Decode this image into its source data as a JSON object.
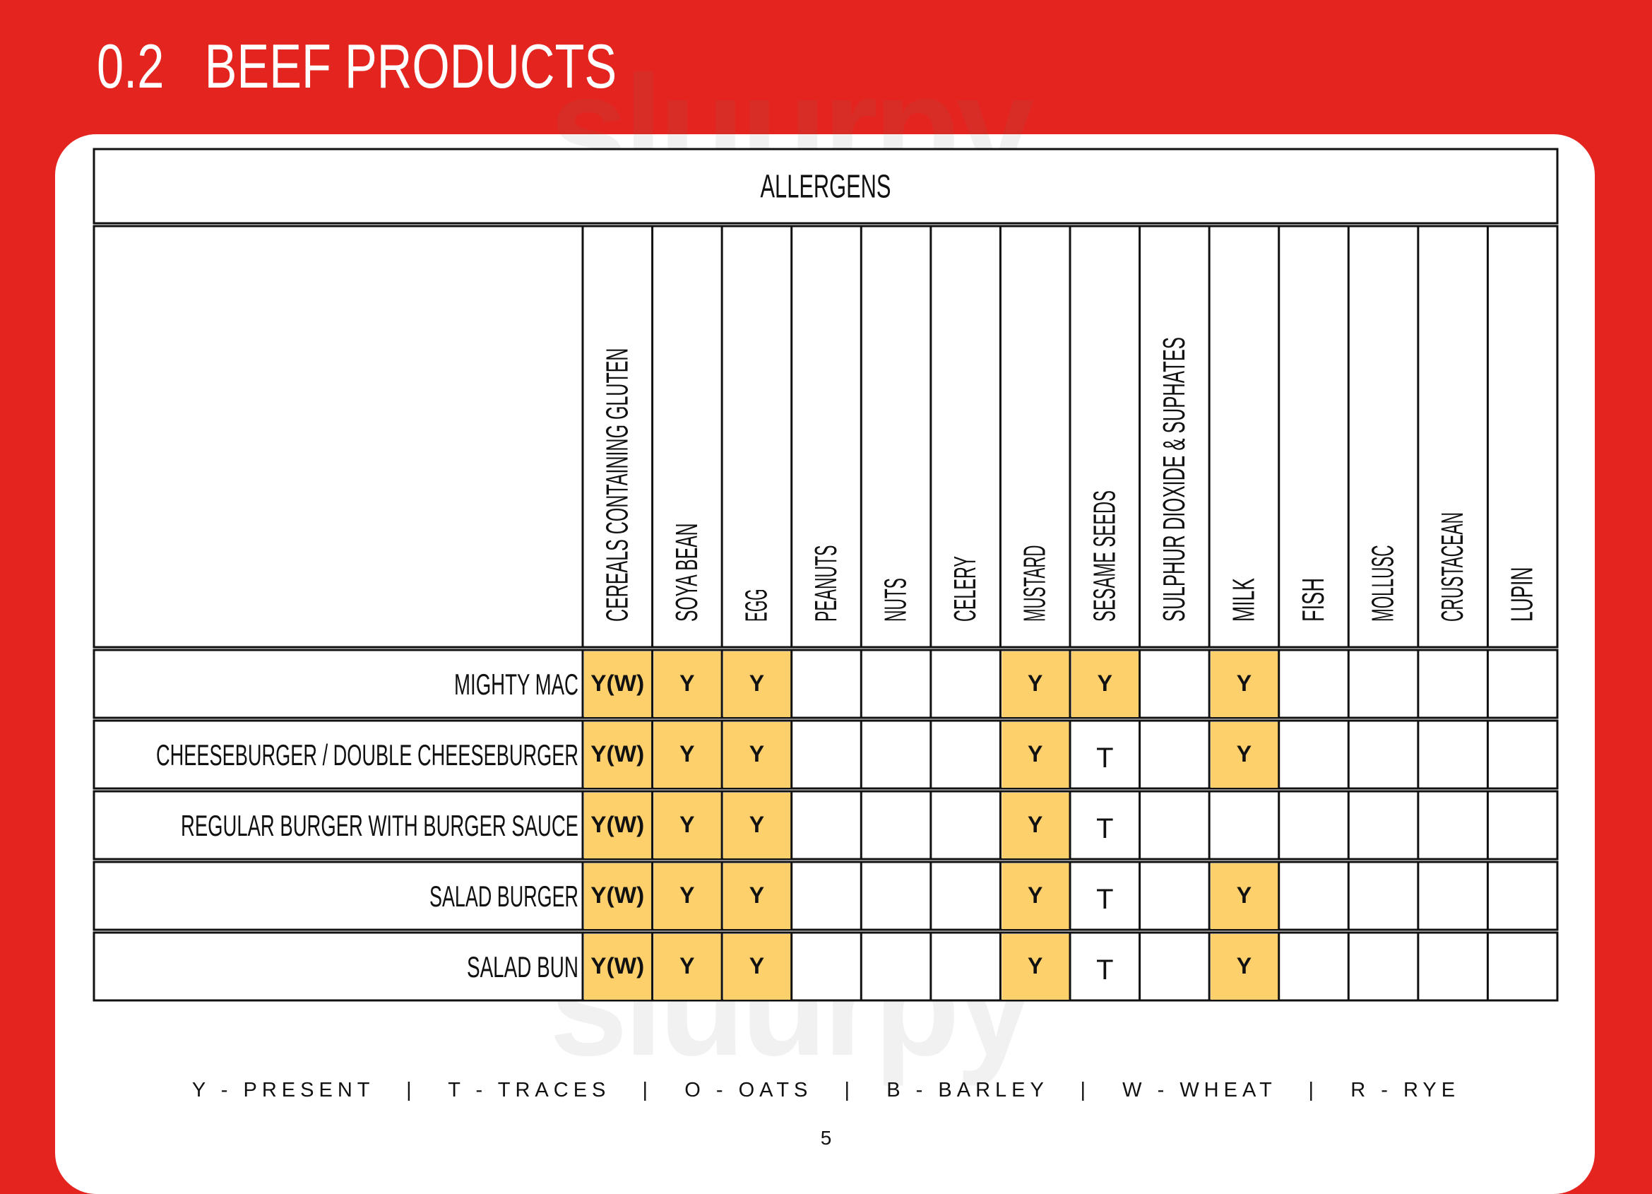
{
  "page": {
    "section_number": "0.2",
    "section_title": "BEEF PRODUCTS",
    "page_number": "5"
  },
  "table": {
    "header_title": "ALLERGENS",
    "columns": [
      "CEREALS CONTAINING GLUTEN",
      "SOYA BEAN",
      "EGG",
      "PEANUTS",
      "NUTS",
      "CELERY",
      "MUSTARD",
      "SESAME SEEDS",
      "SULPHUR DIOXIDE & SUPHATES",
      "MILK",
      "FISH",
      "MOLLUSC",
      "CRUSTACEAN",
      "LUPIN"
    ],
    "rows": [
      {
        "name": "MIGHTY MAC",
        "values": [
          "Y(W)",
          "Y",
          "Y",
          "",
          "",
          "",
          "Y",
          "Y",
          "",
          "Y",
          "",
          "",
          "",
          ""
        ]
      },
      {
        "name": "CHEESEBURGER / DOUBLE CHEESEBURGER",
        "values": [
          "Y(W)",
          "Y",
          "Y",
          "",
          "",
          "",
          "Y",
          "T",
          "",
          "Y",
          "",
          "",
          "",
          ""
        ]
      },
      {
        "name": "REGULAR BURGER WITH BURGER SAUCE",
        "values": [
          "Y(W)",
          "Y",
          "Y",
          "",
          "",
          "",
          "Y",
          "T",
          "",
          "",
          "",
          "",
          "",
          ""
        ]
      },
      {
        "name": "SALAD BURGER",
        "values": [
          "Y(W)",
          "Y",
          "Y",
          "",
          "",
          "",
          "Y",
          "T",
          "",
          "Y",
          "",
          "",
          "",
          ""
        ]
      },
      {
        "name": "SALAD BUN",
        "values": [
          "Y(W)",
          "Y",
          "Y",
          "",
          "",
          "",
          "Y",
          "T",
          "",
          "Y",
          "",
          "",
          "",
          ""
        ]
      }
    ]
  },
  "legend": "Y - PRESENT   |   T - TRACES   |   O - OATS   |   B - BARLEY   |   W - WHEAT   |   R - RYE",
  "watermark": "sluurpy",
  "colors": {
    "background_red": "#e4251f",
    "present_highlight": "#fdd06b",
    "panel": "#ffffff",
    "lines": "#111111"
  }
}
